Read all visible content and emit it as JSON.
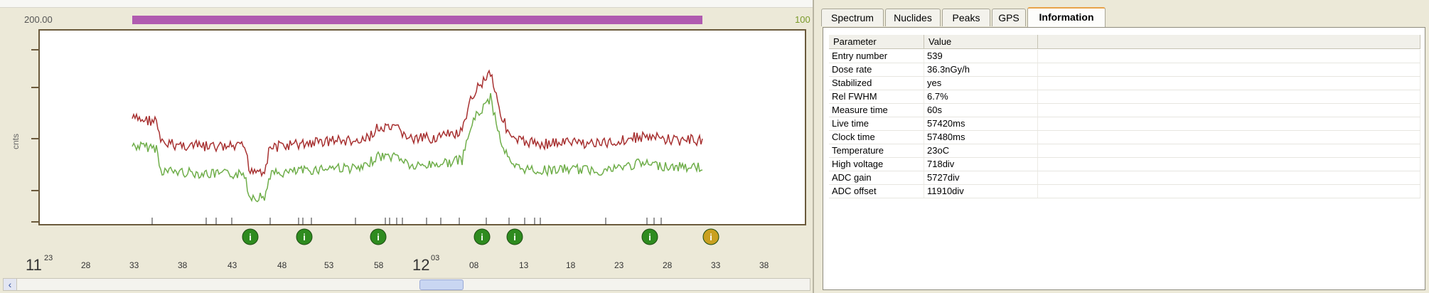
{
  "chart": {
    "y_top_label": "200.00",
    "y_right_label": "100",
    "y_axis_label": "cnts",
    "x_day_labels": [
      {
        "day": "11",
        "suffix": "23"
      },
      {
        "day": "12",
        "suffix": "03"
      }
    ],
    "x_tick_labels": [
      "28",
      "33",
      "38",
      "43",
      "48",
      "53",
      "58",
      "08",
      "13",
      "18",
      "23",
      "28",
      "33",
      "38"
    ],
    "colors": {
      "series_upper": "#a83232",
      "series_lower": "#6fae4a",
      "range_bar": "#b05bb0",
      "marker_green": "#2e8b1f",
      "marker_yellow": "#c9a020"
    },
    "markers": [
      {
        "label": "i",
        "color": "green"
      },
      {
        "label": "i",
        "color": "green"
      },
      {
        "label": "i",
        "color": "green"
      },
      {
        "label": "i",
        "color": "green"
      },
      {
        "label": "i",
        "color": "green"
      },
      {
        "label": "i",
        "color": "green"
      },
      {
        "label": "i",
        "color": "yellow"
      }
    ]
  },
  "tabs": [
    {
      "label": "Spectrum",
      "active": false
    },
    {
      "label": "Nuclides",
      "active": false
    },
    {
      "label": "Peaks",
      "active": false
    },
    {
      "label": "GPS",
      "active": false
    },
    {
      "label": "Information",
      "active": true
    }
  ],
  "info_table": {
    "headers": [
      "Parameter",
      "Value",
      ""
    ],
    "rows": [
      {
        "parameter": "Entry number",
        "value": "539"
      },
      {
        "parameter": "Dose rate",
        "value": "36.3nGy/h"
      },
      {
        "parameter": "Stabilized",
        "value": "yes"
      },
      {
        "parameter": "Rel FWHM",
        "value": "6.7%"
      },
      {
        "parameter": "Measure time",
        "value": "60s"
      },
      {
        "parameter": "Live time",
        "value": "57420ms"
      },
      {
        "parameter": "Clock time",
        "value": "57480ms"
      },
      {
        "parameter": "Temperature",
        "value": "23oC"
      },
      {
        "parameter": "High voltage",
        "value": "718div"
      },
      {
        "parameter": "ADC gain",
        "value": "5727div"
      },
      {
        "parameter": "ADC offset",
        "value": "11910div"
      }
    ]
  },
  "scrollbar": {
    "left_arrow_glyph": "‹"
  }
}
